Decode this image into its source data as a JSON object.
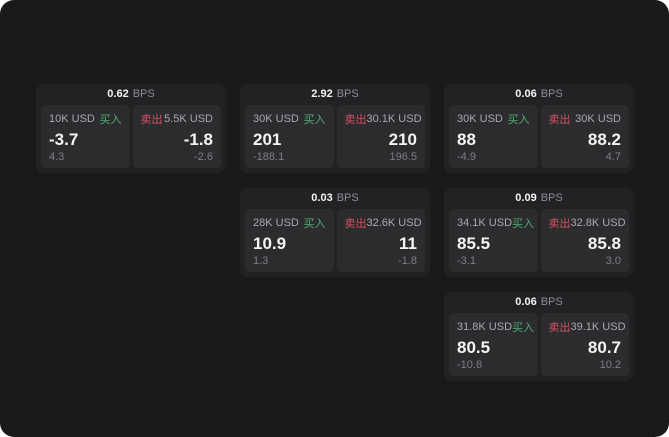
{
  "labels": {
    "buy": "买入",
    "sell": "卖出",
    "bps_unit": "BPS"
  },
  "colors": {
    "page_background": "#1a1a1c",
    "card_background": "#222225",
    "panel_background": "#2c2c2e",
    "buy_green": "#4fae73",
    "sell_red": "#d44f62",
    "value_white": "#f4f4f5",
    "muted_gray": "#7f7f84"
  },
  "cards": [
    {
      "bps": "0.62",
      "buy": {
        "size": "10K USD",
        "value": "-3.7",
        "delta": "4.3"
      },
      "sell": {
        "size": "5.5K USD",
        "value": "-1.8",
        "delta": "-2.6"
      }
    },
    {
      "bps": "2.92",
      "buy": {
        "size": "30K USD",
        "value": "201",
        "delta": "-188.1"
      },
      "sell": {
        "size": "30.1K USD",
        "value": "210",
        "delta": "196.5"
      }
    },
    {
      "bps": "0.06",
      "buy": {
        "size": "30K USD",
        "value": "88",
        "delta": "-4.9"
      },
      "sell": {
        "size": "30K USD",
        "value": "88.2",
        "delta": "4.7"
      }
    },
    {
      "bps": "0.03",
      "buy": {
        "size": "28K USD",
        "value": "10.9",
        "delta": "1.3"
      },
      "sell": {
        "size": "32.6K USD",
        "value": "11",
        "delta": "-1.8"
      }
    },
    {
      "bps": "0.09",
      "buy": {
        "size": "34.1K USD",
        "value": "85.5",
        "delta": "-3.1"
      },
      "sell": {
        "size": "32.8K USD",
        "value": "85.8",
        "delta": "3.0"
      }
    },
    {
      "bps": "0.06",
      "buy": {
        "size": "31.8K USD",
        "value": "80.5",
        "delta": "-10.8"
      },
      "sell": {
        "size": "39.1K USD",
        "value": "80.7",
        "delta": "10.2"
      }
    }
  ]
}
